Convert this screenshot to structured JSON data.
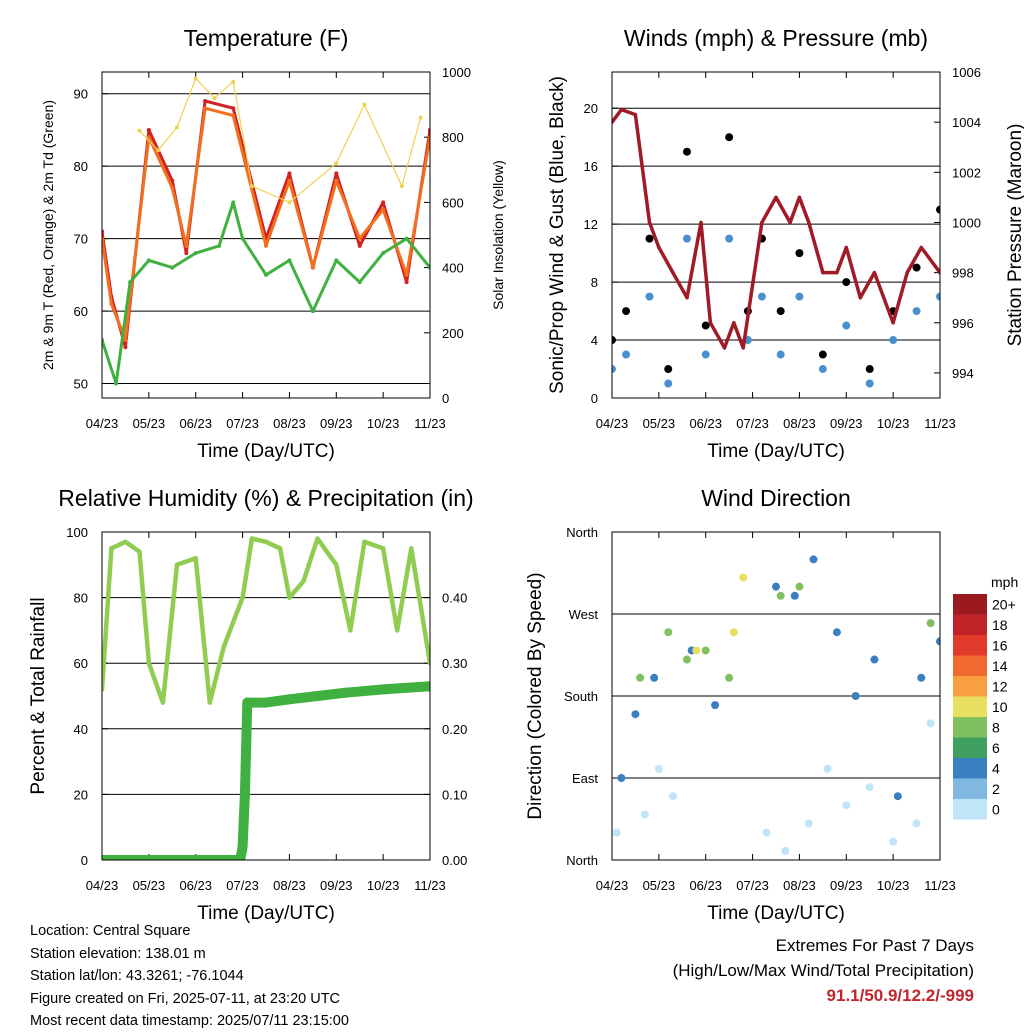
{
  "chart_data": [
    {
      "type": "line",
      "title": "Temperature (F)",
      "xlabel": "Time (Day/UTC)",
      "ylabel": "2m & 9m T (Red, Orange) & 2m Td (Green)",
      "y2label": "Solar Insolation (Yellow)",
      "xticks": [
        "04/23",
        "05/23",
        "06/23",
        "07/23",
        "08/23",
        "09/23",
        "10/23",
        "11/23"
      ],
      "ylim": [
        48,
        93
      ],
      "yticks": [
        50,
        60,
        70,
        80,
        90
      ],
      "y2lim": [
        0,
        1000
      ],
      "y2ticks": [
        0,
        200,
        400,
        600,
        800,
        1000
      ],
      "grid": true,
      "series": [
        {
          "color": "#d42020",
          "x": [
            0,
            0.2,
            0.5,
            1,
            1.5,
            1.8,
            2.2,
            2.8,
            3.5,
            4,
            4.5,
            5,
            5.5,
            6,
            6.5,
            7
          ],
          "values": [
            71,
            62,
            55,
            85,
            78,
            68,
            89,
            88,
            70,
            79,
            66,
            79,
            69,
            75,
            64,
            85
          ]
        },
        {
          "color": "#f07020",
          "x": [
            0,
            0.2,
            0.5,
            1,
            1.5,
            1.8,
            2.2,
            2.8,
            3.5,
            4,
            4.5,
            5,
            5.5,
            6,
            6.5,
            7
          ],
          "values": [
            70,
            61,
            56,
            84,
            77,
            69,
            88,
            87,
            69,
            78,
            66,
            78,
            70,
            74,
            65,
            84
          ]
        },
        {
          "color": "#40b040",
          "x": [
            0,
            0.3,
            0.6,
            1,
            1.5,
            2,
            2.5,
            2.8,
            3,
            3.5,
            4,
            4.5,
            5,
            5.5,
            6,
            6.5,
            7
          ],
          "values": [
            56,
            50,
            64,
            67,
            66,
            68,
            69,
            75,
            70,
            65,
            67,
            60,
            67,
            64,
            68,
            70,
            66
          ]
        },
        {
          "color": "#f0d050",
          "x": [
            0.8,
            1.2,
            1.6,
            2,
            2.4,
            2.8,
            3.2,
            4,
            5,
            5.6,
            6.4,
            6.8
          ],
          "values": [
            820,
            760,
            830,
            980,
            920,
            970,
            650,
            600,
            720,
            900,
            650,
            860
          ]
        }
      ]
    },
    {
      "type": "scatter",
      "title": "Winds (mph) & Pressure (mb)",
      "xlabel": "Time (Day/UTC)",
      "ylabel": "Sonic/Prop Wind & Gust (Blue, Black)",
      "y2label": "Station Pressure (Maroon)",
      "xticks": [
        "04/23",
        "05/23",
        "06/23",
        "07/23",
        "08/23",
        "09/23",
        "10/23",
        "11/23"
      ],
      "ylim": [
        0,
        22.5
      ],
      "yticks": [
        0,
        4,
        8,
        12,
        16,
        20
      ],
      "y2lim": [
        993,
        1006
      ],
      "y2ticks": [
        994,
        996,
        998,
        1000,
        1002,
        1004,
        1006
      ],
      "grid": true,
      "series": [
        {
          "color": "#000000",
          "x": [
            0,
            0.3,
            0.8,
            1.2,
            1.6,
            2,
            2.5,
            2.9,
            3.2,
            3.6,
            4,
            4.5,
            5,
            5.5,
            6,
            6.5,
            7
          ],
          "values": [
            4,
            6,
            11,
            2,
            17,
            5,
            18,
            6,
            11,
            6,
            10,
            3,
            8,
            2,
            6,
            9,
            13
          ]
        },
        {
          "color": "#4a90d0",
          "x": [
            0,
            0.3,
            0.8,
            1.2,
            1.6,
            2,
            2.5,
            2.9,
            3.2,
            3.6,
            4,
            4.5,
            5,
            5.5,
            6,
            6.5,
            7
          ],
          "values": [
            2,
            3,
            7,
            1,
            11,
            3,
            11,
            4,
            7,
            3,
            7,
            2,
            5,
            1,
            4,
            6,
            7
          ]
        },
        {
          "color": "#a01a28",
          "x": [
            0,
            0.2,
            0.5,
            0.8,
            1,
            1.3,
            1.6,
            1.9,
            2.1,
            2.4,
            2.6,
            2.8,
            3.2,
            3.5,
            3.8,
            4,
            4.2,
            4.5,
            4.8,
            5,
            5.3,
            5.6,
            6,
            6.3,
            6.6,
            7
          ],
          "values": [
            1004,
            1004.5,
            1004.3,
            1000,
            999,
            998,
            997,
            1000,
            996,
            995,
            996,
            995,
            1000,
            1001,
            1000,
            1001,
            1000,
            998,
            998,
            999,
            997,
            998,
            996,
            998,
            999,
            998
          ]
        }
      ]
    },
    {
      "type": "line",
      "title": "Relative Humidity (%) & Precipitation (in)",
      "xlabel": "Time (Day/UTC)",
      "ylabel": "Percent & Total Rainfall",
      "xticks": [
        "04/23",
        "05/23",
        "06/23",
        "07/23",
        "08/23",
        "09/23",
        "10/23",
        "11/23"
      ],
      "ylim": [
        0,
        100
      ],
      "yticks": [
        0,
        20,
        40,
        60,
        80,
        100
      ],
      "y2lim": [
        0,
        0.5
      ],
      "y2ticks": [
        "0.00",
        "0.10",
        "0.20",
        "0.30",
        "0.40"
      ],
      "grid": true,
      "series": [
        {
          "color": "#90cc50",
          "x": [
            0,
            0.2,
            0.5,
            0.8,
            1,
            1.3,
            1.6,
            2,
            2.3,
            2.6,
            3,
            3.2,
            3.5,
            3.8,
            4,
            4.3,
            4.6,
            5,
            5.3,
            5.6,
            6,
            6.3,
            6.6,
            7
          ],
          "values": [
            52,
            95,
            97,
            94,
            60,
            48,
            90,
            92,
            48,
            65,
            80,
            98,
            97,
            95,
            80,
            85,
            98,
            90,
            70,
            97,
            95,
            70,
            95,
            60
          ]
        },
        {
          "color": "#40b040",
          "x": [
            0,
            2.95,
            3.0,
            3.05,
            3.1,
            3.5,
            4,
            4.6,
            5.2,
            6,
            7
          ],
          "values": [
            0,
            0,
            0.02,
            0.1,
            0.24,
            0.24,
            0.245,
            0.25,
            0.255,
            0.26,
            0.265
          ]
        }
      ]
    },
    {
      "type": "scatter",
      "title": "Wind Direction",
      "xlabel": "Time (Day/UTC)",
      "ylabel": "Direction (Colored By Speed)",
      "xticks": [
        "04/23",
        "05/23",
        "06/23",
        "07/23",
        "08/23",
        "09/23",
        "10/23",
        "11/23"
      ],
      "yticks": [
        "North",
        "East",
        "South",
        "West",
        "North"
      ],
      "ylim": [
        0,
        360
      ],
      "grid": true,
      "legend": {
        "title": "mph",
        "position": "right",
        "labels": [
          "20+",
          "18",
          "16",
          "14",
          "12",
          "10",
          "8",
          "6",
          "4",
          "2",
          "0"
        ],
        "colors": [
          "#9a1a20",
          "#c02428",
          "#e03a2a",
          "#f06a30",
          "#f8a040",
          "#e8e060",
          "#80c060",
          "#40a060",
          "#3a80c0",
          "#80b8e0",
          "#c0e4f8"
        ]
      },
      "series": [
        {
          "name": "0",
          "color": "#c0e4f8",
          "x": [
            0.1,
            0.7,
            1,
            1.3,
            3.3,
            3.7,
            4.2,
            4.6,
            5,
            5.5,
            6,
            6.5,
            6.8
          ],
          "values": [
            30,
            50,
            100,
            70,
            30,
            10,
            40,
            100,
            60,
            80,
            20,
            40,
            150
          ]
        },
        {
          "name": "4",
          "color": "#3a80c0",
          "x": [
            0.2,
            0.5,
            0.9,
            1.7,
            2.2,
            3.5,
            3.9,
            4.3,
            4.8,
            5.2,
            5.6,
            6.1,
            6.6,
            7
          ],
          "values": [
            90,
            160,
            200,
            230,
            170,
            300,
            290,
            330,
            250,
            180,
            220,
            70,
            200,
            240
          ]
        },
        {
          "name": "8",
          "color": "#80c060",
          "x": [
            0.6,
            1.2,
            1.6,
            2,
            2.5,
            3.6,
            4,
            6.8
          ],
          "values": [
            200,
            250,
            220,
            230,
            200,
            290,
            300,
            260
          ]
        },
        {
          "name": "10",
          "color": "#e8e060",
          "x": [
            1.8,
            2.6,
            2.8
          ],
          "values": [
            230,
            250,
            310
          ]
        }
      ]
    }
  ],
  "info": {
    "location": "Location: Central Square",
    "elevation": "Station elevation: 138.01 m",
    "latlon": "Station lat/lon: 43.3261; -76.1044",
    "created": "Figure created on Fri, 2025-07-11, at 23:20 UTC",
    "recent": "Most recent data timestamp: 2025/07/11 23:15:00"
  },
  "extremes": {
    "title": "Extremes For Past 7 Days",
    "subtitle": "(High/Low/Max Wind/Total Precipitation)",
    "values": "91.1/50.9/12.2/-999"
  }
}
